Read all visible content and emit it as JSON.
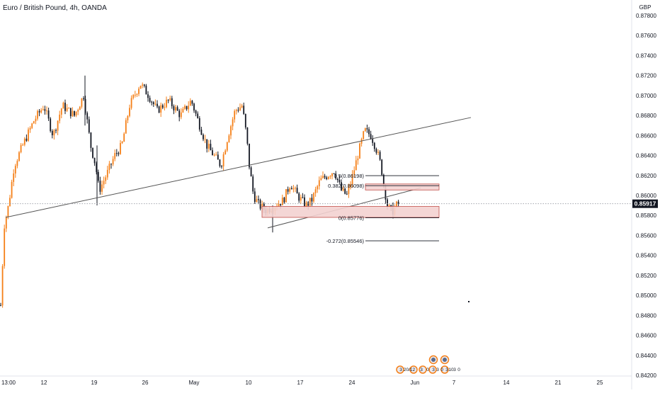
{
  "symbol_title": "Euro / British Pound, 4h, OANDA",
  "currency": "GBP",
  "last_price_label": "0.85917",
  "colors": {
    "up": "#f57f17",
    "down": "#131722",
    "axis_text": "#131722",
    "trendline": "#555555",
    "zone_fill": "#f3d2d0",
    "zone_stroke": "#c2504a",
    "price_line": "#9598a1",
    "price_tag": "#131722"
  },
  "chart_data": {
    "type": "candlestick",
    "title": "Euro / British Pound, 4h, OANDA",
    "ylim": [
      0.842,
      0.8795
    ],
    "y_ticks": [
      "0.87800",
      "0.87600",
      "0.87400",
      "0.87200",
      "0.87000",
      "0.86800",
      "0.86600",
      "0.86400",
      "0.86200",
      "0.86000",
      "0.85800",
      "0.85600",
      "0.85400",
      "0.85200",
      "0.85000",
      "0.84800",
      "0.84600",
      "0.84400",
      "0.84200"
    ],
    "x_ticks": [
      "13:00",
      "12",
      "19",
      "26",
      "May",
      "10",
      "17",
      "24",
      "Jun",
      "7",
      "14",
      "21",
      "25"
    ],
    "approx_path": [
      {
        "x": "13:00",
        "y": 0.849
      },
      {
        "x": "12",
        "y": 0.8685
      },
      {
        "x": "19",
        "y": 0.861
      },
      {
        "x": "26",
        "y": 0.871
      },
      {
        "x": "May",
        "y": 0.8665
      },
      {
        "x": "10",
        "y": 0.8655
      },
      {
        "x": "17",
        "y": 0.8585
      },
      {
        "x": "24",
        "y": 0.8655
      },
      {
        "x": "Jun",
        "y": 0.8592
      }
    ],
    "fibonacci": [
      {
        "label": "0.5(0.86198)",
        "value": 0.86198
      },
      {
        "label": "0.382(0.86098)",
        "value": 0.86098
      },
      {
        "label": "0(0.85776)",
        "value": 0.85776
      },
      {
        "label": "-0.272(0.85546)",
        "value": 0.85546
      }
    ],
    "zones": [
      {
        "from": 0.86055,
        "to": 0.86115
      },
      {
        "from": 0.8578,
        "to": 0.8589
      }
    ],
    "last_price": 0.85917,
    "grid": false,
    "legend": "none"
  },
  "events": {
    "numbers": [
      "3",
      "20/12",
      "3",
      "0",
      "3",
      "3",
      "0",
      "3",
      "10",
      "3",
      "0"
    ]
  }
}
